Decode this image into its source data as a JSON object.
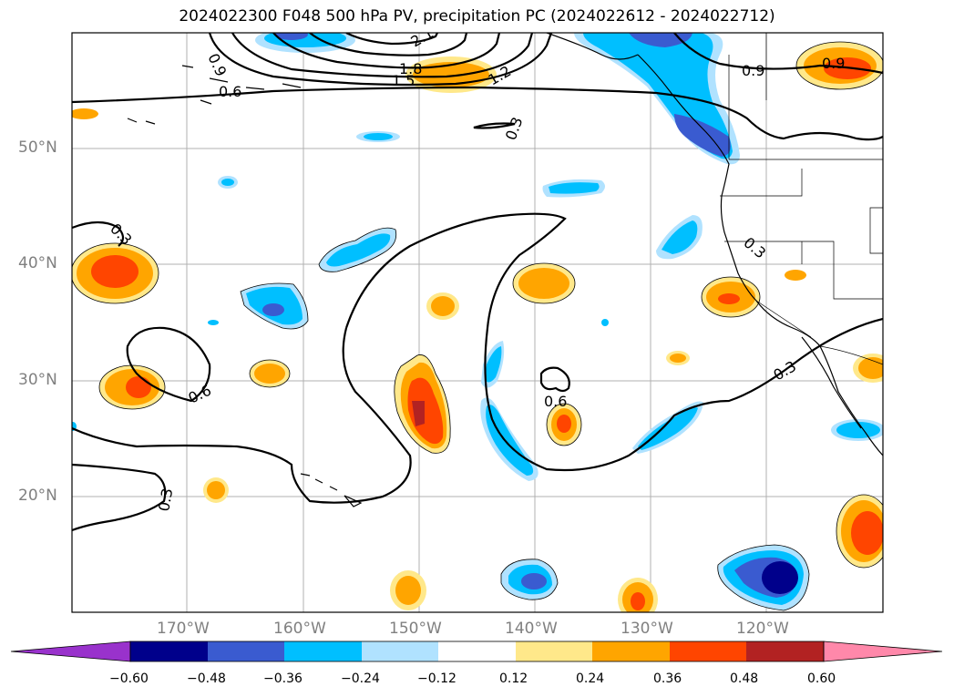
{
  "title": "2024022300 F048 500 hPa PV, precipitation PC (2024022612 - 2024022712)",
  "lat_labels": [
    "50°N",
    "40°N",
    "30°N",
    "20°N"
  ],
  "lon_labels": [
    "170°W",
    "160°W",
    "150°W",
    "140°W",
    "130°W",
    "120°W"
  ],
  "contour_labels": [
    "0.9",
    "2.1",
    "1.8",
    "1.5",
    "1.2",
    "0.6",
    "0.3",
    "0.9",
    "0.9",
    "0.3",
    "0.3",
    "0.6",
    "0.3",
    "0.6",
    "0.3",
    "0.3"
  ],
  "colorbar": {
    "ticks": [
      "−0.60",
      "−0.48",
      "−0.36",
      "−0.24",
      "−0.12",
      "0.12",
      "0.24",
      "0.36",
      "0.48",
      "0.60"
    ],
    "colors": [
      "#9932cc",
      "#00008b",
      "#3a5bd0",
      "#00bfff",
      "#b0e2ff",
      "#ffffff",
      "#ffe88a",
      "#ffa500",
      "#ff4500",
      "#b22222",
      "#ff88aa"
    ]
  },
  "field_colors": {
    "neg_light": "#b0e2ff",
    "neg_mid": "#00bfff",
    "neg_strong": "#3a5bd0",
    "neg_extreme": "#00008b",
    "pos_light": "#ffe88a",
    "pos_mid": "#ffa500",
    "pos_strong": "#ff4500",
    "pos_extreme": "#b22222"
  }
}
